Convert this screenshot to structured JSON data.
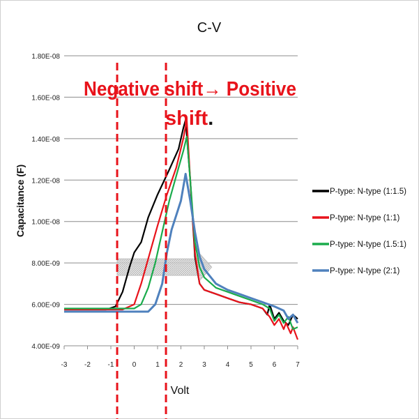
{
  "chart_data": {
    "type": "line",
    "title": "C-V",
    "xlabel": "Volt",
    "ylabel": "Capacitance (F)",
    "xlim": [
      -3,
      7
    ],
    "ylim": [
      4e-09,
      1.8e-08
    ],
    "xticks": [
      "-3",
      "-2",
      "-1",
      "0",
      "1",
      "2",
      "3",
      "4",
      "5",
      "6",
      "7"
    ],
    "yticks": [
      "4.00E-09",
      "6.00E-09",
      "8.00E-09",
      "1.00E-08",
      "1.20E-08",
      "1.40E-08",
      "1.60E-08",
      "1.80E-08"
    ],
    "grid": "horizontal",
    "legend_position": "right",
    "y_unit_note": "series y values in units of 1E-09 F",
    "series": [
      {
        "name": "P-type: N-type (1:1.5)",
        "color": "#000000",
        "x": [
          -3,
          -1.2,
          -0.8,
          -0.5,
          -0.2,
          0,
          0.3,
          0.6,
          1.0,
          1.5,
          1.9,
          2.1,
          2.2,
          2.4,
          2.6,
          2.8,
          3,
          3.5,
          4,
          4.5,
          5,
          5.5,
          5.7,
          5.8,
          6,
          6.2,
          6.4,
          6.6,
          6.8,
          7
        ],
        "y": [
          5.75,
          5.75,
          5.9,
          6.6,
          7.8,
          8.5,
          9.0,
          10.2,
          11.3,
          12.5,
          13.5,
          14.5,
          14.9,
          12.0,
          8.3,
          7.0,
          6.7,
          6.5,
          6.3,
          6.1,
          6.0,
          5.8,
          5.5,
          6.0,
          5.3,
          5.6,
          5.2,
          5.0,
          5.5,
          5.3
        ]
      },
      {
        "name": "P-type: N-type (1:1)",
        "color": "#e8131b",
        "x": [
          -3,
          -0.5,
          0,
          0.3,
          0.6,
          1.0,
          1.4,
          1.8,
          2.1,
          2.25,
          2.4,
          2.6,
          2.8,
          3,
          3.5,
          4,
          4.5,
          5,
          5.5,
          5.8,
          6,
          6.2,
          6.4,
          6.5,
          6.7,
          6.8,
          7
        ],
        "y": [
          5.75,
          5.75,
          6.0,
          7.0,
          8.2,
          9.8,
          11.3,
          12.6,
          14.0,
          14.9,
          12.0,
          8.5,
          7.0,
          6.7,
          6.5,
          6.3,
          6.1,
          6.0,
          5.8,
          5.4,
          5.0,
          5.3,
          4.8,
          5.1,
          4.6,
          4.9,
          4.3
        ]
      },
      {
        "name": "P-type: N-type (1.5:1)",
        "color": "#1aab4c",
        "x": [
          -3,
          0,
          0.3,
          0.6,
          0.9,
          1.2,
          1.5,
          1.8,
          2.1,
          2.25,
          2.4,
          2.6,
          2.8,
          3,
          3.5,
          4,
          4.5,
          5,
          5.5,
          5.8,
          6,
          6.2,
          6.4,
          6.6,
          6.8,
          7
        ],
        "y": [
          5.8,
          5.8,
          6.0,
          6.8,
          8.0,
          9.5,
          11.0,
          12.2,
          13.4,
          14.1,
          12.0,
          9.0,
          7.8,
          7.3,
          6.8,
          6.6,
          6.4,
          6.2,
          6.0,
          5.8,
          5.2,
          5.5,
          5.1,
          5.4,
          4.8,
          4.9
        ]
      },
      {
        "name": "P-type: N-type (2:1)",
        "color": "#4f81bd",
        "x": [
          -3,
          0.6,
          0.9,
          1.2,
          1.4,
          1.6,
          1.8,
          2.0,
          2.2,
          2.4,
          2.6,
          2.8,
          3,
          3.5,
          4,
          4.5,
          5,
          5.5,
          6,
          6.2,
          6.4,
          6.6,
          6.8,
          7
        ],
        "y": [
          5.65,
          5.65,
          6.0,
          7.0,
          8.5,
          9.6,
          10.3,
          11.0,
          12.3,
          11.0,
          9.5,
          8.3,
          7.7,
          7.0,
          6.7,
          6.5,
          6.3,
          6.1,
          5.9,
          5.8,
          5.7,
          5.3,
          5.5,
          5.1
        ]
      }
    ],
    "annotations": {
      "line1": "Negative shift→ Positive",
      "line2": "shift",
      "line2_end": ".",
      "dashed_lines_x": [
        -0.73,
        1.36
      ],
      "shift_arrow": {
        "x_from": -0.73,
        "x_to": 3.2,
        "y_low": 7.4,
        "y_high": 8.2
      }
    }
  }
}
